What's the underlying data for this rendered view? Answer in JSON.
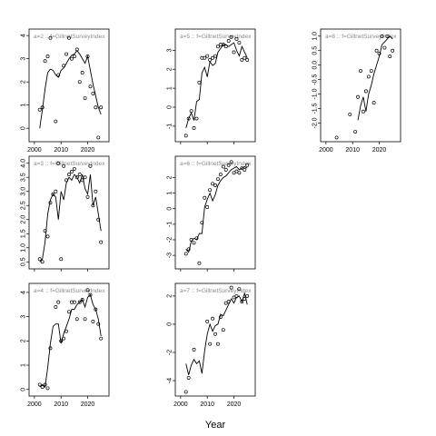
{
  "xlabel": "Year",
  "chart_data": [
    {
      "type": "scatter",
      "panel_label": "a=2 :: f=GillnetSurveyIndex",
      "x_range": [
        2002,
        2025
      ],
      "ylim": [
        -0.4,
        4.1
      ],
      "y_ticks": [
        0,
        1,
        2,
        3,
        4
      ],
      "x_ticks": [
        2000,
        2010,
        2020
      ],
      "show_x_tick_labels": true,
      "observed": {
        "x": [
          2002,
          2003,
          2004,
          2005,
          2006,
          2008,
          2009,
          2011,
          2012,
          2013,
          2014,
          2015,
          2016,
          2017,
          2018,
          2019,
          2020,
          2021,
          2022,
          2023,
          2024,
          2025
        ],
        "y": [
          0.8,
          0.9,
          2.9,
          3.1,
          3.9,
          0.3,
          2.3,
          2.7,
          3.2,
          3.9,
          3.0,
          3.1,
          3.4,
          2.0,
          2.4,
          1.3,
          3.1,
          1.8,
          1.5,
          0.9,
          -0.4,
          0.9
        ]
      },
      "fitted": {
        "x": [
          2002,
          2003,
          2004,
          2005,
          2006,
          2007,
          2008,
          2009,
          2010,
          2011,
          2012,
          2013,
          2014,
          2015,
          2016,
          2017,
          2018,
          2019,
          2020,
          2021,
          2022,
          2023,
          2024,
          2025
        ],
        "y": [
          0.0,
          0.8,
          1.7,
          2.4,
          2.55,
          2.5,
          2.3,
          2.2,
          2.5,
          2.6,
          2.8,
          3.0,
          3.15,
          3.2,
          3.35,
          3.2,
          3.0,
          2.8,
          3.1,
          2.5,
          1.9,
          1.4,
          0.9,
          0.6
        ]
      }
    },
    {
      "type": "scatter",
      "panel_label": "a=5 :: f=GillnetSurveyIndex",
      "x_range": [
        2002,
        2025
      ],
      "ylim": [
        -1.6,
        3.9
      ],
      "y_ticks": [
        -1,
        0,
        1,
        2,
        3
      ],
      "x_ticks": [
        2000,
        2010,
        2020
      ],
      "show_x_tick_labels": false,
      "observed": {
        "x": [
          2002,
          2003,
          2004,
          2005,
          2006,
          2007,
          2008,
          2009,
          2010,
          2011,
          2012,
          2013,
          2014,
          2015,
          2016,
          2017,
          2018,
          2019,
          2020,
          2021,
          2022,
          2023,
          2024,
          2025
        ],
        "y": [
          -1.5,
          -0.6,
          -0.2,
          -1.1,
          -0.6,
          1.3,
          2.6,
          2.6,
          2.7,
          2.5,
          2.6,
          2.7,
          3.2,
          3.3,
          3.3,
          3.2,
          3.5,
          3.7,
          2.9,
          3.6,
          3.4,
          2.5,
          2.6,
          2.5
        ]
      },
      "fitted": {
        "x": [
          2002,
          2003,
          2004,
          2005,
          2006,
          2007,
          2008,
          2009,
          2010,
          2011,
          2012,
          2013,
          2014,
          2015,
          2016,
          2017,
          2018,
          2019,
          2020,
          2021,
          2022,
          2023,
          2024,
          2025
        ],
        "y": [
          -1.1,
          -0.6,
          -0.3,
          -0.7,
          0.3,
          0.4,
          1.8,
          2.1,
          1.6,
          2.4,
          2.2,
          2.3,
          2.9,
          3.1,
          3.3,
          3.3,
          3.2,
          3.3,
          3.4,
          3.0,
          2.7,
          3.2,
          2.9,
          2.6
        ]
      }
    },
    {
      "type": "scatter",
      "panel_label": "a=8 :: f=GillnetSurveyIndex",
      "x_range": [
        2002,
        2025
      ],
      "ylim": [
        -2.5,
        1.1
      ],
      "y_ticks": [
        -2.0,
        -1.5,
        -1.0,
        -0.5,
        0.0,
        0.5,
        1.0
      ],
      "x_ticks": [
        2000,
        2010,
        2020
      ],
      "show_x_tick_labels": true,
      "observed": {
        "x": [
          2004,
          2009,
          2011,
          2012,
          2013,
          2014,
          2015,
          2016,
          2017,
          2018,
          2019,
          2020,
          2021,
          2022,
          2023,
          2024,
          2025
        ],
        "y": [
          -2.5,
          -1.7,
          -2.3,
          -1.1,
          -0.2,
          -1.6,
          -0.9,
          -0.4,
          -0.2,
          -1.3,
          0.5,
          0.4,
          1.0,
          0.6,
          1.0,
          0.3,
          0.5
        ]
      },
      "fitted": {
        "x": [
          2012,
          2013,
          2014,
          2015,
          2016,
          2017,
          2018,
          2019,
          2020,
          2021,
          2022,
          2023,
          2024,
          2025
        ],
        "y": [
          -1.9,
          -1.4,
          -1.1,
          -1.6,
          -1.0,
          -0.7,
          -0.3,
          0.0,
          0.3,
          0.7,
          0.8,
          0.9,
          1.0,
          0.9
        ]
      }
    },
    {
      "type": "scatter",
      "panel_label": "a=3 :: f=GillnetSurveyIndex",
      "x_range": [
        2002,
        2025
      ],
      "ylim": [
        0.4,
        4.1
      ],
      "y_ticks": [
        0.5,
        1.0,
        1.5,
        2.0,
        2.5,
        3.0,
        3.5,
        4.0
      ],
      "x_ticks": [
        2000,
        2010,
        2020
      ],
      "show_x_tick_labels": false,
      "observed": {
        "x": [
          2002,
          2003,
          2004,
          2005,
          2006,
          2007,
          2008,
          2009,
          2010,
          2011,
          2012,
          2013,
          2014,
          2015,
          2016,
          2017,
          2018,
          2019,
          2020,
          2021,
          2022,
          2023,
          2024,
          2025
        ],
        "y": [
          0.6,
          0.5,
          1.6,
          1.4,
          2.6,
          2.9,
          3.0,
          4.0,
          0.6,
          3.9,
          3.4,
          3.6,
          3.7,
          3.8,
          3.5,
          3.6,
          3.4,
          3.5,
          2.8,
          3.9,
          2.5,
          3.0,
          2.0,
          1.2
        ]
      },
      "fitted": {
        "x": [
          2002,
          2003,
          2004,
          2005,
          2006,
          2007,
          2008,
          2009,
          2010,
          2011,
          2012,
          2013,
          2014,
          2015,
          2016,
          2017,
          2018,
          2019,
          2020,
          2021,
          2022,
          2023,
          2024,
          2025
        ],
        "y": [
          0.5,
          0.6,
          1.2,
          2.2,
          2.7,
          2.9,
          2.8,
          2.0,
          3.0,
          2.7,
          3.3,
          3.5,
          3.4,
          3.6,
          3.5,
          3.3,
          3.6,
          3.1,
          2.9,
          3.6,
          2.5,
          2.8,
          2.2,
          1.6
        ]
      }
    },
    {
      "type": "scatter",
      "panel_label": "a=6 :: f=GillnetSurveyIndex",
      "x_range": [
        2002,
        2025
      ],
      "ylim": [
        -3.6,
        3.1
      ],
      "y_ticks": [
        -3,
        -2,
        -1,
        0,
        1,
        2
      ],
      "x_ticks": [
        2000,
        2010,
        2020
      ],
      "show_x_tick_labels": false,
      "observed": {
        "x": [
          2002,
          2003,
          2004,
          2005,
          2006,
          2007,
          2008,
          2009,
          2010,
          2011,
          2012,
          2013,
          2014,
          2015,
          2016,
          2017,
          2018,
          2019,
          2020,
          2021,
          2022,
          2023,
          2024,
          2025
        ],
        "y": [
          -2.9,
          -2.6,
          -2.0,
          -2.2,
          -1.9,
          -3.5,
          -0.9,
          0.7,
          0.1,
          1.2,
          1.6,
          1.5,
          1.9,
          2.2,
          2.7,
          2.5,
          2.8,
          3.0,
          2.3,
          2.4,
          2.3,
          2.6,
          2.5,
          2.8
        ]
      },
      "fitted": {
        "x": [
          2002,
          2003,
          2004,
          2005,
          2006,
          2007,
          2008,
          2009,
          2010,
          2011,
          2012,
          2013,
          2014,
          2015,
          2016,
          2017,
          2018,
          2019,
          2020,
          2021,
          2022,
          2023,
          2024,
          2025
        ],
        "y": [
          -2.6,
          -2.8,
          -2.1,
          -1.9,
          -2.0,
          -1.6,
          -1.6,
          0.1,
          0.6,
          1.0,
          0.5,
          0.9,
          1.5,
          1.8,
          2.0,
          2.1,
          2.3,
          2.5,
          2.6,
          2.7,
          2.5,
          2.6,
          2.7,
          2.6
        ]
      }
    },
    {
      "type": "scatter",
      "panel_label": "a=4 :: f=GillnetSurveyIndex",
      "x_range": [
        2002,
        2025
      ],
      "ylim": [
        -0.1,
        4.2
      ],
      "y_ticks": [
        0,
        1,
        2,
        3,
        4
      ],
      "x_ticks": [
        2000,
        2010,
        2020
      ],
      "show_x_tick_labels": true,
      "observed": {
        "x": [
          2002,
          2003,
          2004,
          2005,
          2006,
          2008,
          2009,
          2010,
          2011,
          2012,
          2013,
          2014,
          2015,
          2016,
          2017,
          2018,
          2019,
          2020,
          2021,
          2022,
          2023,
          2024,
          2025
        ],
        "y": [
          0.2,
          0.1,
          0.2,
          0.05,
          1.7,
          3.4,
          3.6,
          2.0,
          2.1,
          2.4,
          3.2,
          3.6,
          3.6,
          2.9,
          3.6,
          3.7,
          2.9,
          4.1,
          3.9,
          2.8,
          3.3,
          2.7,
          2.1
        ]
      },
      "fitted": {
        "x": [
          2002,
          2003,
          2004,
          2005,
          2006,
          2007,
          2008,
          2009,
          2010,
          2011,
          2012,
          2013,
          2014,
          2015,
          2016,
          2017,
          2018,
          2019,
          2020,
          2021,
          2022,
          2023,
          2024,
          2025
        ],
        "y": [
          0.1,
          0.2,
          0.1,
          0.9,
          1.9,
          2.6,
          2.7,
          2.7,
          1.9,
          2.3,
          2.6,
          2.9,
          3.3,
          3.3,
          3.5,
          3.6,
          3.7,
          3.4,
          3.8,
          3.9,
          3.5,
          3.3,
          2.9,
          2.2
        ]
      }
    },
    {
      "type": "scatter",
      "panel_label": "a=7 :: f=GillnetSurveyIndex",
      "x_range": [
        2002,
        2025
      ],
      "ylim": [
        -4.8,
        2.6
      ],
      "y_ticks": [
        -4,
        -2,
        0,
        2
      ],
      "x_ticks": [
        2000,
        2010,
        2020
      ],
      "show_x_tick_labels": true,
      "observed": {
        "x": [
          2002,
          2003,
          2005,
          2010,
          2011,
          2012,
          2013,
          2014,
          2015,
          2016,
          2017,
          2018,
          2019,
          2020,
          2021,
          2022,
          2023,
          2024,
          2025
        ],
        "y": [
          -4.8,
          -3.8,
          -1.8,
          0.2,
          -1.4,
          0.4,
          -0.7,
          -1.4,
          0.5,
          -0.4,
          1.5,
          1.6,
          2.6,
          1.9,
          2.0,
          2.5,
          1.6,
          1.8,
          2.0
        ]
      },
      "fitted": {
        "x": [
          2002,
          2003,
          2004,
          2005,
          2006,
          2007,
          2008,
          2009,
          2010,
          2011,
          2012,
          2013,
          2014,
          2015,
          2016,
          2017,
          2018,
          2019,
          2020,
          2021,
          2022,
          2023,
          2024,
          2025
        ],
        "y": [
          -2.8,
          -3.6,
          -2.9,
          -2.5,
          -2.8,
          -2.6,
          -3.5,
          -1.9,
          -0.7,
          0.0,
          -0.5,
          -0.1,
          0.0,
          0.7,
          0.6,
          1.0,
          1.4,
          1.8,
          1.5,
          1.9,
          2.0,
          1.6,
          2.2,
          1.4
        ]
      }
    }
  ]
}
